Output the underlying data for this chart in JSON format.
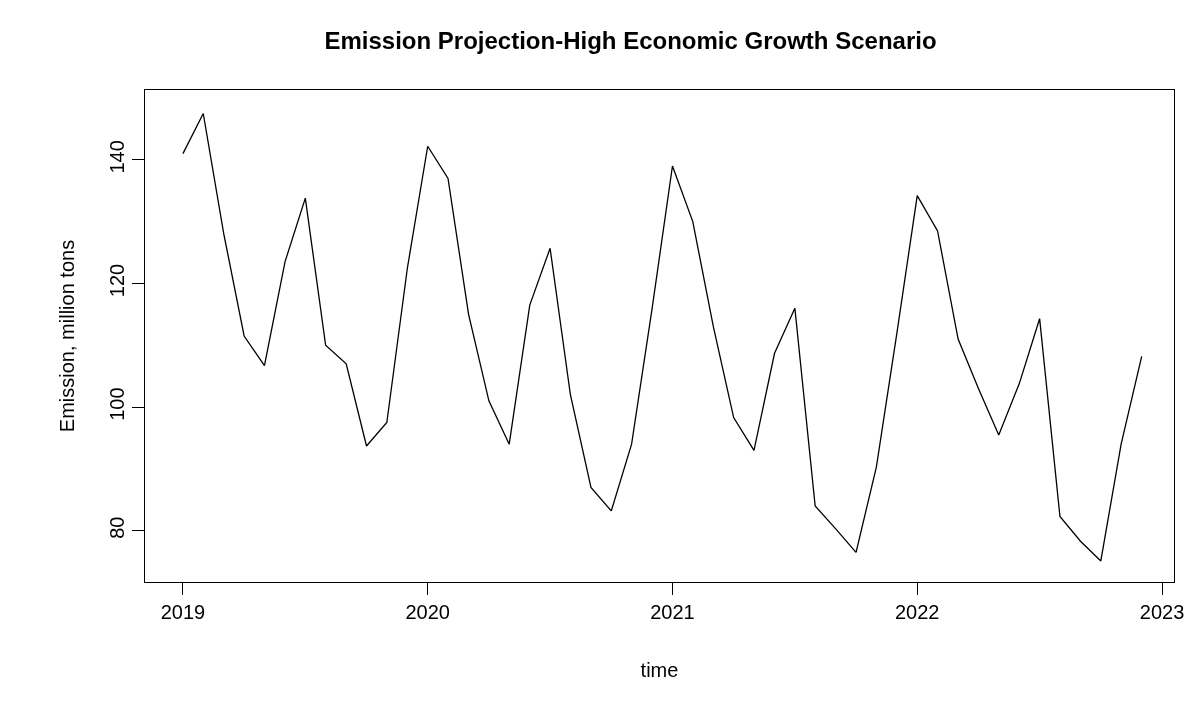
{
  "chart_data": {
    "type": "line",
    "title": "Emission Projection-High Economic Growth Scenario",
    "xlabel": "time",
    "ylabel": "Emission, million tons",
    "x": [
      2019,
      2019.083,
      2019.167,
      2019.25,
      2019.333,
      2019.417,
      2019.5,
      2019.583,
      2019.667,
      2019.75,
      2019.833,
      2019.917,
      2020,
      2020.083,
      2020.167,
      2020.25,
      2020.333,
      2020.417,
      2020.5,
      2020.583,
      2020.667,
      2020.75,
      2020.833,
      2020.917,
      2021,
      2021.083,
      2021.167,
      2021.25,
      2021.333,
      2021.417,
      2021.5,
      2021.583,
      2021.667,
      2021.75,
      2021.833,
      2021.917,
      2022,
      2022.083,
      2022.167,
      2022.25,
      2022.333,
      2022.417,
      2022.5,
      2022.583,
      2022.667,
      2022.75,
      2022.833,
      2022.917
    ],
    "series": [
      {
        "color": "#000000",
        "values": [
          141,
          147.5,
          128,
          111.5,
          106.7,
          123.5,
          133.8,
          110,
          107,
          93.7,
          97.5,
          122.5,
          142.2,
          137,
          115,
          101,
          94,
          116.5,
          125.7,
          102,
          87,
          83.2,
          94,
          116,
          139,
          130,
          113,
          98.3,
          93,
          108.7,
          116,
          84,
          80.3,
          76.5,
          90.3,
          112,
          134.2,
          128.5,
          111,
          103,
          95.5,
          103.8,
          114.3,
          82.3,
          78.3,
          75.1,
          94,
          108.2
        ]
      }
    ],
    "xlim": [
      2018.845,
      2023.049
    ],
    "xticks": [
      2019,
      2020,
      2021,
      2022,
      2023
    ],
    "ylim": [
      71.7,
      151.3
    ],
    "yticks": [
      80,
      100,
      120,
      140
    ],
    "grid": false,
    "marker": "none",
    "line_style": "solid"
  }
}
